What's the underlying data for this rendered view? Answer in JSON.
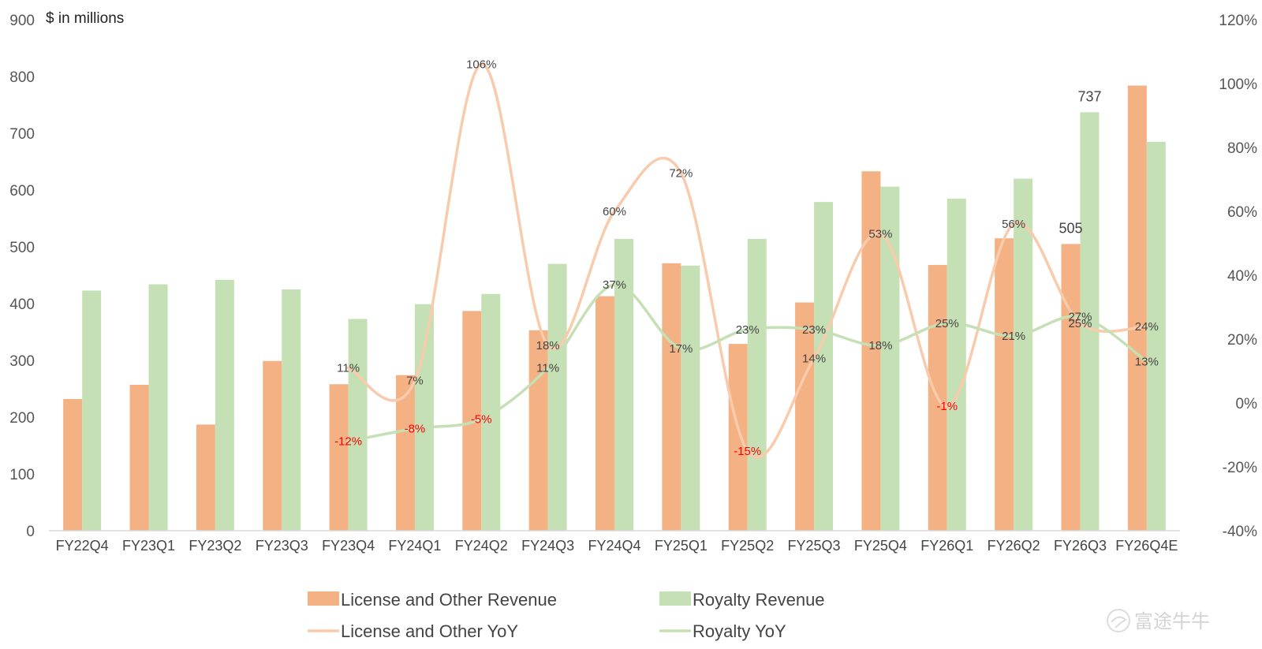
{
  "chart_data": {
    "type": "bar",
    "unit_label": "$ in millions",
    "categories": [
      "FY22Q4",
      "FY23Q1",
      "FY23Q2",
      "FY23Q3",
      "FY23Q4",
      "FY24Q1",
      "FY24Q2",
      "FY24Q3",
      "FY24Q4",
      "FY25Q1",
      "FY25Q2",
      "FY25Q3",
      "FY25Q4",
      "FY26Q1",
      "FY26Q2",
      "FY26Q3",
      "FY26Q4E"
    ],
    "y_left": {
      "min": 0,
      "max": 900,
      "ticks": [
        "0",
        "100",
        "200",
        "300",
        "400",
        "500",
        "600",
        "700",
        "800",
        "900"
      ]
    },
    "y_right": {
      "min": -40,
      "max": 120,
      "ticks": [
        "-40%",
        "-20%",
        "0%",
        "20%",
        "40%",
        "60%",
        "80%",
        "100%",
        "120%"
      ]
    },
    "bar_series": [
      {
        "name": "License and Other Revenue",
        "color": "#f4b183",
        "values": [
          232,
          257,
          187,
          299,
          258,
          274,
          387,
          353,
          413,
          471,
          329,
          402,
          633,
          468,
          515,
          505,
          784
        ]
      },
      {
        "name": "Royalty Revenue",
        "color": "#c5e0b4",
        "values": [
          423,
          434,
          442,
          425,
          373,
          399,
          417,
          470,
          514,
          467,
          514,
          579,
          606,
          585,
          620,
          737,
          685
        ]
      }
    ],
    "bar_labels": [
      {
        "series": 0,
        "index": 15,
        "text": "505"
      },
      {
        "series": 1,
        "index": 15,
        "text": "737"
      }
    ],
    "line_series": [
      {
        "name": "License and Other YoY",
        "color": "#f8cbad",
        "start_index": 4,
        "values": [
          11,
          7,
          106,
          18,
          60,
          72,
          -15,
          14,
          53,
          -1,
          56,
          25,
          24
        ],
        "labels": [
          "11%",
          "7%",
          "106%",
          "18%",
          "60%",
          "72%",
          "-15%",
          "14%",
          "53%",
          "-1%",
          "56%",
          "25%",
          "24%"
        ]
      },
      {
        "name": "Royalty YoY",
        "color": "#c5e0b4",
        "start_index": 4,
        "values": [
          -12,
          -8,
          -5,
          11,
          37,
          17,
          23,
          23,
          18,
          25,
          21,
          27,
          13
        ],
        "labels": [
          "-12%",
          "-8%",
          "-5%",
          "11%",
          "37%",
          "17%",
          "23%",
          "23%",
          "18%",
          "25%",
          "21%",
          "27%",
          "13%"
        ]
      }
    ],
    "negative_label_color": "#ff0000",
    "legend": [
      {
        "label": "License and Other Revenue",
        "kind": "bar",
        "color": "#f4b183"
      },
      {
        "label": "Royalty Revenue",
        "kind": "bar",
        "color": "#c5e0b4"
      },
      {
        "label": "License and Other YoY",
        "kind": "line",
        "color": "#f8cbad"
      },
      {
        "label": "Royalty YoY",
        "kind": "line",
        "color": "#c5e0b4"
      }
    ],
    "legend_position": "bottom",
    "grid": false
  },
  "watermark": {
    "text": "富途牛牛"
  }
}
